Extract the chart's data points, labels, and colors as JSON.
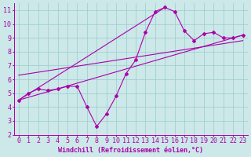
{
  "xlabel": "Windchill (Refroidissement éolien,°C)",
  "xlim": [
    -0.5,
    23.5
  ],
  "ylim": [
    2,
    11.5
  ],
  "yticks": [
    2,
    3,
    4,
    5,
    6,
    7,
    8,
    9,
    10,
    11
  ],
  "xticks": [
    0,
    1,
    2,
    3,
    4,
    5,
    6,
    7,
    8,
    9,
    10,
    11,
    12,
    13,
    14,
    15,
    16,
    17,
    18,
    19,
    20,
    21,
    22,
    23
  ],
  "background_color": "#cce8e8",
  "line_color": "#aa00aa",
  "grid_color": "#99cccc",
  "curve1_x": [
    0,
    1,
    2,
    3,
    4,
    5,
    6,
    7,
    8,
    9,
    10,
    11,
    12,
    13,
    14,
    15,
    16,
    17,
    18,
    19,
    20,
    21,
    22,
    23
  ],
  "curve1_y": [
    4.5,
    5.0,
    5.3,
    5.2,
    5.3,
    5.5,
    5.5,
    4.0,
    2.6,
    3.5,
    4.8,
    6.4,
    7.4,
    9.4,
    10.9,
    11.2,
    10.9,
    9.5,
    8.8,
    9.3,
    9.4,
    9.0,
    9.0,
    9.2
  ],
  "line1_x": [
    0,
    15
  ],
  "line1_y": [
    4.5,
    11.2
  ],
  "line2_x": [
    0,
    23
  ],
  "line2_y": [
    4.5,
    9.2
  ],
  "line3_x": [
    0,
    23
  ],
  "line3_y": [
    6.3,
    8.8
  ],
  "font_size": 6,
  "marker": "D",
  "marker_size": 2.0,
  "linewidth": 0.8
}
